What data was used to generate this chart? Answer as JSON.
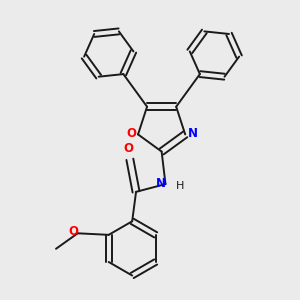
{
  "background_color": "#ebebeb",
  "bond_color": "#1a1a1a",
  "n_color": "#0000ff",
  "o_color": "#ff0000",
  "bond_width": 1.4,
  "figsize": [
    3.0,
    3.0
  ],
  "dpi": 100,
  "xlim": [
    -1.6,
    1.6
  ],
  "ylim": [
    -1.9,
    1.9
  ]
}
